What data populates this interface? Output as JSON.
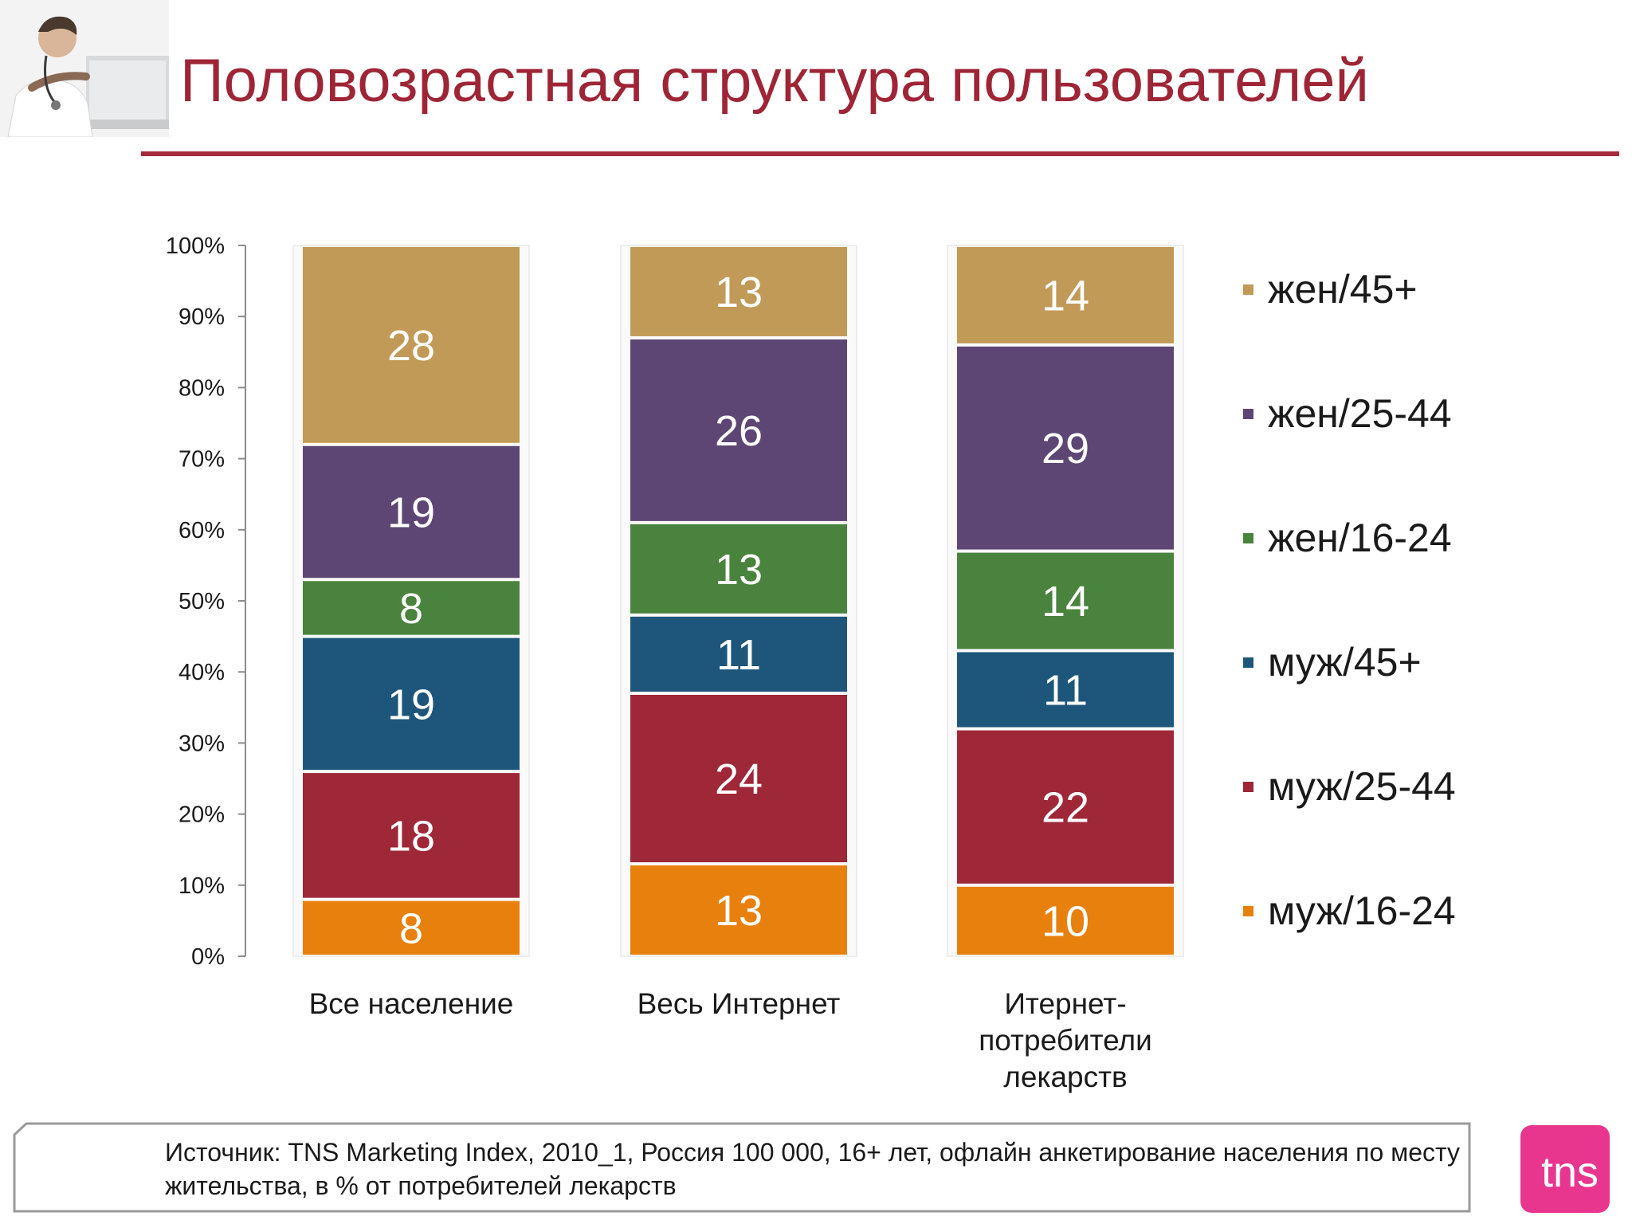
{
  "slide": {
    "title": "Половозрастная структура пользователей",
    "accent_color": "#9e2536",
    "source_note": "Источник: TNS Marketing Index, 2010_1, Россия 100 000, 16+ лет, офлайн анкетирование населения по месту жительства, в % от потребителей лекарств",
    "logo_text": "tns",
    "logo_color": "#e8368f"
  },
  "chart_data": {
    "type": "bar",
    "stacked": true,
    "title": "",
    "xlabel": "",
    "ylabel": "",
    "ylim": [
      0,
      100
    ],
    "yticks": [
      "0%",
      "10%",
      "20%",
      "30%",
      "40%",
      "50%",
      "60%",
      "70%",
      "80%",
      "90%",
      "100%"
    ],
    "categories": [
      [
        "Все население"
      ],
      [
        "Весь Интернет"
      ],
      [
        "Итернет-",
        "потребители",
        "лекарств"
      ]
    ],
    "series": [
      {
        "name": "муж/16-24",
        "color": "#e8800e",
        "values": [
          8,
          13,
          10
        ]
      },
      {
        "name": "муж/25-44",
        "color": "#9e2738",
        "values": [
          18,
          24,
          22
        ]
      },
      {
        "name": "муж/45+",
        "color": "#1e567b",
        "values": [
          19,
          11,
          11
        ]
      },
      {
        "name": "жен/16-24",
        "color": "#4a833d",
        "values": [
          8,
          13,
          14
        ]
      },
      {
        "name": "жен/25-44",
        "color": "#5e4674",
        "values": [
          19,
          26,
          29
        ]
      },
      {
        "name": "жен/45+",
        "color": "#c29a58",
        "values": [
          28,
          13,
          14
        ]
      }
    ],
    "grid": false,
    "legend_position": "right"
  }
}
